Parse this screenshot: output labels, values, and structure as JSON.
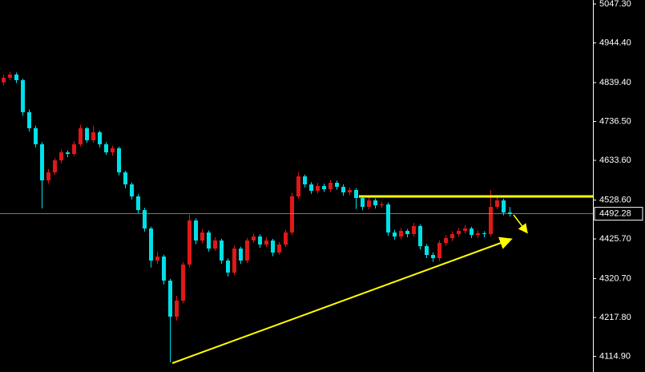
{
  "chart_data": {
    "type": "candlestick",
    "up_color": "#e01818",
    "down_color": "#00e0e8",
    "ylim": [
      4073.6,
      5057.9
    ],
    "yticks": [
      {
        "value": 5047.3,
        "label": "5047.30"
      },
      {
        "value": 4944.4,
        "label": "4944.40"
      },
      {
        "value": 4839.4,
        "label": "4839.40"
      },
      {
        "value": 4736.5,
        "label": "4736.50"
      },
      {
        "value": 4633.6,
        "label": "4633.60"
      },
      {
        "value": 4528.6,
        "label": "4528.60"
      },
      {
        "value": 4425.7,
        "label": "4425.70"
      },
      {
        "value": 4320.7,
        "label": "4320.70"
      },
      {
        "value": 4217.8,
        "label": "4217.80"
      },
      {
        "value": 4114.9,
        "label": "4114.90"
      }
    ],
    "last_price": 4492.28,
    "candles": [
      [
        4840.0,
        4860,
        4832,
        4852.1
      ],
      [
        4852.1,
        4868,
        4846,
        4860.6
      ],
      [
        4860.6,
        4866,
        4838,
        4845.8
      ],
      [
        4845.8,
        4850,
        4752,
        4760.9
      ],
      [
        4760.9,
        4768,
        4710,
        4718.5
      ],
      [
        4718.5,
        4725,
        4668,
        4676.1
      ],
      [
        4676.1,
        4682,
        4506.3,
        4580.6
      ],
      [
        4580.6,
        4610,
        4572,
        4601.8
      ],
      [
        4601.8,
        4640,
        4595,
        4633.6
      ],
      [
        4633.6,
        4662,
        4626,
        4654.8
      ],
      [
        4654.8,
        4660,
        4642,
        4650.6
      ],
      [
        4650.6,
        4684,
        4645,
        4676.1
      ],
      [
        4676.1,
        4728,
        4670,
        4718.5
      ],
      [
        4718.5,
        4722,
        4680,
        4686.7
      ],
      [
        4686.7,
        4725,
        4680,
        4707.9
      ],
      [
        4707.9,
        4712,
        4668,
        4676.1
      ],
      [
        4676.1,
        4682,
        4648,
        4654.8
      ],
      [
        4654.8,
        4672,
        4646,
        4665.5
      ],
      [
        4665.5,
        4670,
        4594,
        4601.8
      ],
      [
        4601.8,
        4606,
        4560,
        4570.0
      ],
      [
        4570.0,
        4575,
        4530,
        4538.2
      ],
      [
        4538.2,
        4544,
        4494,
        4502.1
      ],
      [
        4502.1,
        4508,
        4445,
        4453.3
      ],
      [
        4453.3,
        4458,
        4350,
        4368.5
      ],
      [
        4368.5,
        4392,
        4360,
        4379.1
      ],
      [
        4379.1,
        4384,
        4305,
        4315.4
      ],
      [
        4315.4,
        4320,
        4099.0,
        4220.0
      ],
      [
        4220.0,
        4275,
        4210,
        4262.4
      ],
      [
        4262.4,
        4365,
        4255,
        4357.8
      ],
      [
        4357.8,
        4490,
        4350,
        4474.5
      ],
      [
        4474.5,
        4480,
        4412,
        4421.5
      ],
      [
        4421.5,
        4452,
        4414,
        4442.7
      ],
      [
        4442.7,
        4448,
        4392,
        4400.3
      ],
      [
        4400.3,
        4430,
        4394,
        4421.5
      ],
      [
        4421.5,
        4426,
        4360,
        4368.5
      ],
      [
        4368.5,
        4374,
        4326,
        4336.6
      ],
      [
        4336.6,
        4408,
        4330,
        4400.3
      ],
      [
        4400.3,
        4405,
        4360,
        4368.5
      ],
      [
        4368.5,
        4428,
        4362,
        4421.5
      ],
      [
        4421.5,
        4440,
        4415,
        4432.1
      ],
      [
        4432.1,
        4438,
        4402,
        4410.9
      ],
      [
        4410.9,
        4430,
        4404,
        4421.5
      ],
      [
        4421.5,
        4426,
        4380,
        4389.7
      ],
      [
        4389.7,
        4418,
        4384,
        4410.9
      ],
      [
        4410.9,
        4450,
        4404,
        4442.7
      ],
      [
        4442.7,
        4548,
        4436,
        4538.2
      ],
      [
        4538.2,
        4602,
        4532,
        4591.2
      ],
      [
        4591.2,
        4596,
        4562,
        4570.0
      ],
      [
        4570.0,
        4576,
        4545,
        4553.0
      ],
      [
        4553.0,
        4574,
        4546,
        4565.7
      ],
      [
        4565.7,
        4572,
        4550,
        4557.3
      ],
      [
        4557.3,
        4582,
        4550,
        4574.2
      ],
      [
        4574.2,
        4580,
        4556,
        4563.6
      ],
      [
        4563.6,
        4570,
        4540,
        4548.8
      ],
      [
        4548.8,
        4562,
        4542,
        4555.1
      ],
      [
        4555.1,
        4560,
        4505,
        4533.9
      ],
      [
        4533.9,
        4540,
        4502,
        4510.6
      ],
      [
        4510.6,
        4536,
        4504,
        4527.6
      ],
      [
        4527.6,
        4533,
        4506,
        4514.8
      ],
      [
        4514.8,
        4524,
        4508,
        4517.0
      ],
      [
        4517.0,
        4522,
        4434,
        4442.7
      ],
      [
        4442.7,
        4450,
        4424,
        4432.1
      ],
      [
        4432.1,
        4455,
        4425,
        4447.0
      ],
      [
        4447.0,
        4452,
        4430,
        4438.5
      ],
      [
        4438.5,
        4468,
        4432,
        4459.7
      ],
      [
        4459.7,
        4464,
        4398,
        4406.6
      ],
      [
        4406.6,
        4412,
        4375,
        4383.3
      ],
      [
        4383.3,
        4390,
        4365,
        4374.8
      ],
      [
        4374.8,
        4422,
        4368,
        4415.1
      ],
      [
        4415.1,
        4436,
        4408,
        4427.9
      ],
      [
        4427.9,
        4446,
        4420,
        4438.5
      ],
      [
        4438.5,
        4455,
        4432,
        4447.0
      ],
      [
        4447.0,
        4462,
        4440,
        4453.3
      ],
      [
        4453.3,
        4458,
        4428,
        4436.3
      ],
      [
        4436.3,
        4448,
        4428,
        4440.6
      ],
      [
        4440.6,
        4446,
        4430,
        4438.5
      ],
      [
        4438.5,
        4555,
        4432,
        4510.6
      ],
      [
        4510.6,
        4540,
        4505,
        4527.6
      ],
      [
        4527.6,
        4532,
        4488,
        4495.7
      ],
      [
        4495.7,
        4510,
        4485,
        4492.28
      ]
    ]
  }
}
